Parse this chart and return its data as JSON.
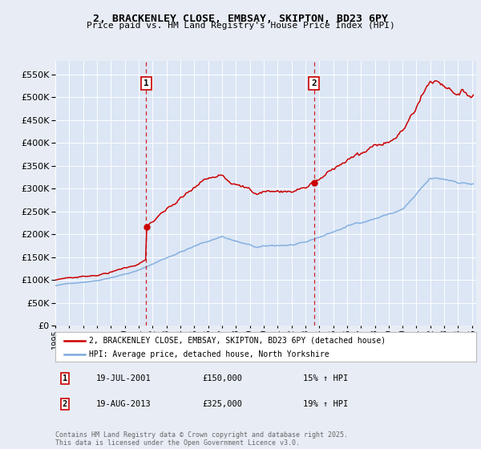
{
  "title": "2, BRACKENLEY CLOSE, EMBSAY, SKIPTON, BD23 6PY",
  "subtitle": "Price paid vs. HM Land Registry's House Price Index (HPI)",
  "bg_color": "#e8edf5",
  "plot_bg_color": "#dce6f5",
  "y_min": 0,
  "y_max": 580000,
  "y_ticks": [
    0,
    50000,
    100000,
    150000,
    200000,
    250000,
    300000,
    350000,
    400000,
    450000,
    500000,
    550000
  ],
  "sale1_year": 2001.55,
  "sale1_price": 150000,
  "sale2_year": 2013.63,
  "sale2_price": 325000,
  "red_line_color": "#cc0000",
  "blue_line_color": "#7aaadd",
  "dashed_line_color": "#cc0000",
  "legend_label_red": "2, BRACKENLEY CLOSE, EMBSAY, SKIPTON, BD23 6PY (detached house)",
  "legend_label_blue": "HPI: Average price, detached house, North Yorkshire",
  "annotation1_date": "19-JUL-2001",
  "annotation1_price": "£150,000",
  "annotation1_hpi": "15% ↑ HPI",
  "annotation2_date": "19-AUG-2013",
  "annotation2_price": "£325,000",
  "annotation2_hpi": "19% ↑ HPI",
  "footer": "Contains HM Land Registry data © Crown copyright and database right 2025.\nThis data is licensed under the Open Government Licence v3.0.",
  "grid_color": "#ffffff",
  "marker_box_color": "#cc0000"
}
